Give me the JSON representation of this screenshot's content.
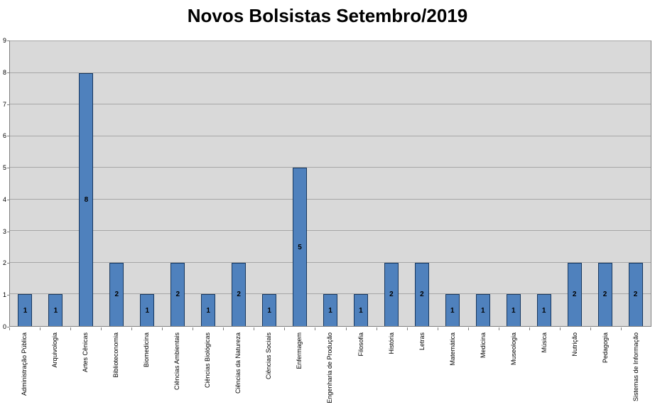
{
  "chart_data": {
    "type": "bar",
    "title": "Novos Bolsistas Setembro/2019",
    "categories": [
      "Administração Pública",
      "Arquivologia",
      "Artes Cênicas",
      "Biblioteconomia",
      "Biomedicina",
      "Ciências Ambientais",
      "Ciências Biológicas",
      "Ciências da Natureza",
      "Ciências Sociais",
      "Enfermagem",
      "Engenharia de Produção",
      "Filosofia",
      "História",
      "Letras",
      "Matemática",
      "Medicina",
      "Museologia",
      "Música",
      "Nutrição",
      "Pedagogia",
      "Sistemas de Informação"
    ],
    "values": [
      1,
      1,
      8,
      2,
      1,
      2,
      1,
      2,
      1,
      5,
      1,
      1,
      2,
      2,
      1,
      1,
      1,
      1,
      2,
      2,
      2
    ],
    "xlabel": "",
    "ylabel": "",
    "ylim": [
      0,
      9
    ],
    "yticks": [
      0,
      1,
      2,
      3,
      4,
      5,
      6,
      7,
      8,
      9
    ],
    "grid": true,
    "legend": false,
    "data_labels": "centered-inside-bars",
    "x_label_rotation": "vertical-bottom-to-top",
    "colors": {
      "bar_fill": "#4f81bd",
      "bar_border": "#17375e",
      "plot_bg": "#d9d9d9",
      "gridline": "#a6a6a6",
      "axis_border": "#808080",
      "text": "#000000"
    }
  }
}
